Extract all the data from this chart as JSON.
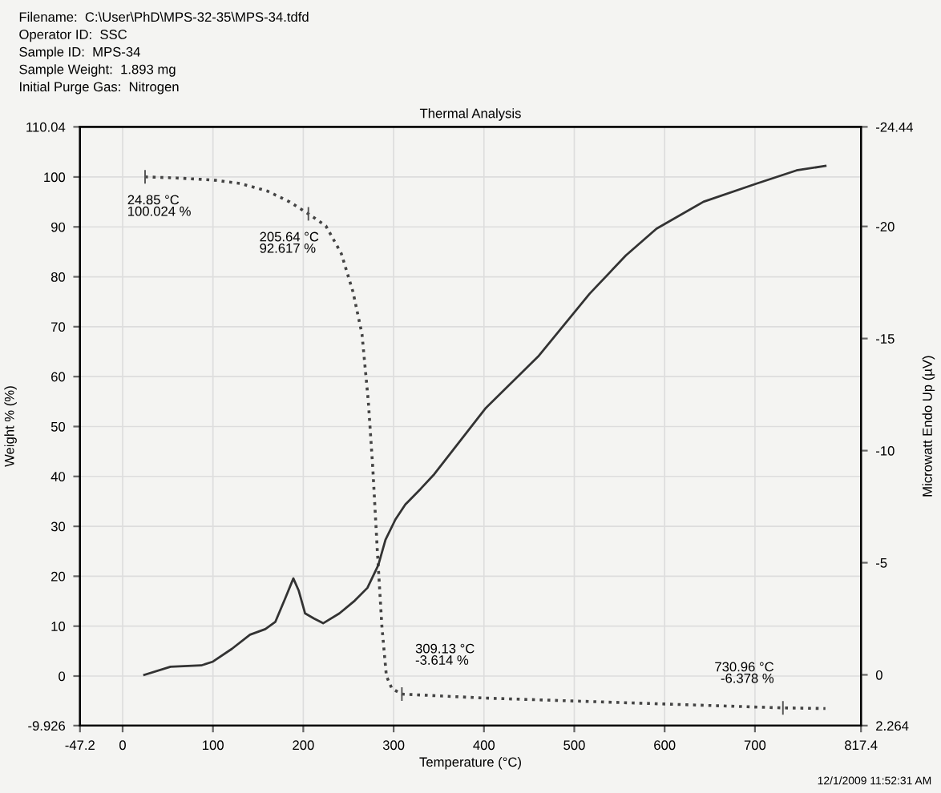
{
  "chart_data": {
    "type": "line",
    "title": "Thermal Analysis",
    "xlabel": "Temperature (°C)",
    "ylabel": "Weight % (%)",
    "y2label": "Microwatt Endo Up (µV)",
    "xlim": [
      -47.2,
      817.4
    ],
    "xticks": [
      -47.2,
      0,
      100,
      200,
      300,
      400,
      500,
      600,
      700,
      817.4
    ],
    "ylim": [
      -9.926,
      110.04
    ],
    "yticks": [
      -9.926,
      0,
      10,
      20,
      30,
      40,
      50,
      60,
      70,
      80,
      90,
      100,
      110.04
    ],
    "y2lim": [
      2.264,
      -24.44
    ],
    "y2ticks": [
      2.264,
      0,
      -5,
      -10,
      -15,
      -20,
      -24.44
    ],
    "grid": true,
    "series": [
      {
        "color": "#444444",
        "line_style": "dotted",
        "x": [
          24.85,
          60,
          100,
          130,
          160,
          185,
          205.64,
          225,
          242,
          255,
          265,
          272,
          277,
          282,
          287,
          292,
          298,
          309.13,
          400,
          500,
          600,
          730.96,
          778
        ],
        "values": [
          100.024,
          99.8,
          99.4,
          98.7,
          97.2,
          95,
          92.617,
          90.2,
          84.7,
          77,
          68.5,
          55,
          41.5,
          25,
          10,
          0,
          -2.5,
          -3.614,
          -4.4,
          -5.0,
          -5.6,
          -6.378,
          -6.5
        ]
      },
      {
        "color": "#333333",
        "line_style": "solid",
        "axis": "y2",
        "x": [
          24,
          53,
          87,
          100,
          121,
          141,
          158,
          169,
          180,
          189,
          195,
          202,
          212,
          222,
          240,
          257,
          271,
          283,
          291,
          302,
          313,
          330,
          345,
          402,
          460,
          517,
          557,
          591,
          643,
          701,
          746,
          778
        ],
        "values": [
          0.0,
          -0.36,
          -0.42,
          -0.59,
          -1.16,
          -1.79,
          -2.04,
          -2.36,
          -3.41,
          -4.3,
          -3.75,
          -2.74,
          -2.51,
          -2.3,
          -2.74,
          -3.31,
          -3.88,
          -4.89,
          -6.02,
          -6.93,
          -7.6,
          -8.3,
          -8.95,
          -11.9,
          -14.2,
          -17.0,
          -18.7,
          -19.9,
          -21.1,
          -21.9,
          -22.5,
          -22.7
        ]
      }
    ],
    "annotations": [
      "Filename:  C:\\User\\PhD\\MPS-32-35\\MPS-34.tdfd",
      "Operator ID:  SSC",
      "Sample ID:  MPS-34",
      "Sample Weight:  1.893 mg",
      "Initial Purge Gas:  Nitrogen",
      {
        "text": "24.85 °C\n100.024 %",
        "x": 24.85,
        "y": 100.024
      },
      {
        "text": "205.64 °C\n92.617 %",
        "x": 205.64,
        "y": 92.617
      },
      {
        "text": "309.13 °C\n-3.614 %",
        "x": 309.13,
        "y": -3.614
      },
      {
        "text": "730.96 °C\n-6.378 %",
        "x": 730.96,
        "y": -6.378
      },
      "12/1/2009 11:52:31 AM"
    ]
  }
}
